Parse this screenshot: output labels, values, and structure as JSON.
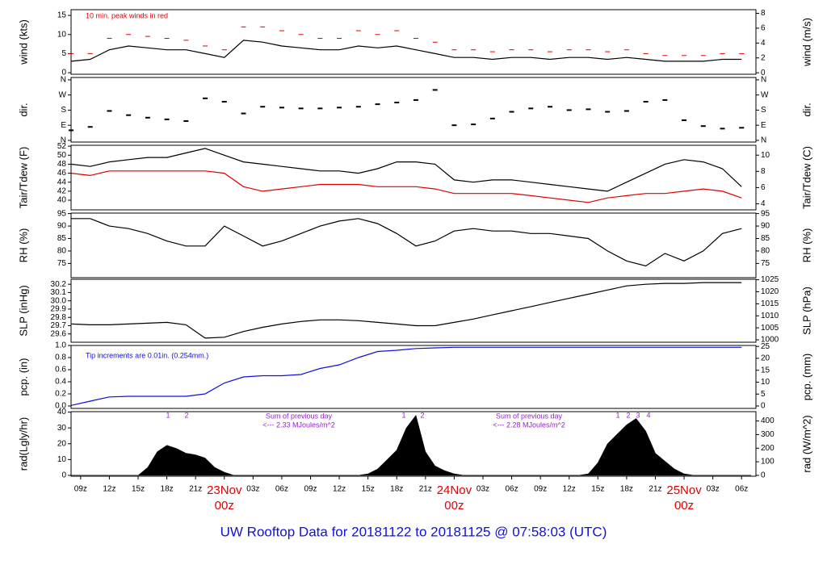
{
  "title": "UW Rooftop Data for 20181122  to  20181125 @ 07:58:03  (UTC)",
  "chart_data": [
    {
      "type": "line",
      "ylabel": "wind (kts)",
      "y2label": "wind (m/s)",
      "xlim": [
        -16,
        55.5
      ],
      "ylim": [
        -0.4,
        16.5
      ],
      "yticks": [
        0,
        5,
        10,
        15
      ],
      "y2lim": [
        -0.2,
        8.49
      ],
      "y2ticks": [
        0,
        2,
        4,
        6,
        8
      ],
      "x": [
        -16,
        -14,
        -12,
        -10,
        -8,
        -6,
        -4,
        -2,
        0,
        2,
        4,
        6,
        8,
        10,
        12,
        14,
        16,
        18,
        20,
        22,
        24,
        26,
        28,
        30,
        32,
        34,
        36,
        38,
        40,
        42,
        44,
        46,
        48,
        50,
        52,
        54
      ],
      "series": [
        {
          "name": "wind",
          "style": "line",
          "color": "#000000",
          "values": [
            3,
            3.5,
            6,
            7,
            6.5,
            6,
            6,
            5,
            4,
            8.5,
            8,
            7,
            6.5,
            6,
            6,
            7,
            6.5,
            7,
            6,
            5,
            4,
            4,
            3.5,
            4,
            4,
            3.5,
            4,
            4,
            3.5,
            4,
            3.5,
            3,
            3,
            3,
            3.5,
            3.5
          ]
        },
        {
          "name": "peak",
          "style": "dash",
          "color": "#e00000",
          "values": [
            5,
            5,
            9,
            10,
            9.5,
            9,
            8.5,
            7,
            6,
            12,
            12,
            11,
            10,
            9,
            9,
            11,
            10,
            11,
            9,
            8,
            6,
            6,
            5.5,
            6,
            6,
            5.5,
            6,
            6,
            5.5,
            6,
            5,
            4.5,
            4.5,
            4.5,
            5,
            5
          ]
        }
      ],
      "annotations": [
        "10 min. peak winds in red"
      ],
      "annotation_color": "#e00000"
    },
    {
      "type": "scatter",
      "ylabel": "dir.",
      "y2label": "dir.",
      "xlim": [
        -16,
        55.5
      ],
      "ylim": [
        -10,
        374
      ],
      "yticks": [
        {
          "value": 0,
          "label": "N"
        },
        {
          "value": 90,
          "label": "E"
        },
        {
          "value": 180,
          "label": "S"
        },
        {
          "value": 270,
          "label": "W"
        },
        {
          "value": 360,
          "label": "N"
        }
      ],
      "y2lim": [
        -10,
        374
      ],
      "y2ticks": [
        {
          "value": 0,
          "label": "N"
        },
        {
          "value": 90,
          "label": "E"
        },
        {
          "value": 180,
          "label": "S"
        },
        {
          "value": 270,
          "label": "W"
        },
        {
          "value": 360,
          "label": "N"
        }
      ],
      "x": [
        -16,
        -14,
        -12,
        -10,
        -8,
        -6,
        -4,
        -2,
        0,
        2,
        4,
        6,
        8,
        10,
        12,
        14,
        16,
        18,
        20,
        22,
        24,
        26,
        28,
        30,
        32,
        34,
        36,
        38,
        40,
        42,
        44,
        46,
        48,
        50,
        52,
        54
      ],
      "series": [
        {
          "name": "dir",
          "color": "#000000",
          "values": [
            60,
            80,
            175,
            150,
            135,
            125,
            115,
            250,
            230,
            160,
            200,
            195,
            190,
            190,
            195,
            200,
            215,
            225,
            240,
            300,
            90,
            95,
            130,
            170,
            190,
            200,
            180,
            185,
            170,
            175,
            230,
            240,
            120,
            85,
            70,
            75
          ]
        }
      ]
    },
    {
      "type": "line",
      "ylabel": "Tair/Tdew (F)",
      "y2label": "Tair/Tdew (C)",
      "xlim": [
        -16,
        55.5
      ],
      "ylim": [
        37.85,
        52.2
      ],
      "yticks": [
        40,
        42,
        44,
        46,
        48,
        50,
        52
      ],
      "y2lim": [
        3.25,
        11.22
      ],
      "y2ticks": [
        4,
        6,
        8,
        10
      ],
      "x": [
        -16,
        -14,
        -12,
        -10,
        -8,
        -6,
        -4,
        -2,
        0,
        2,
        4,
        6,
        8,
        10,
        12,
        14,
        16,
        18,
        20,
        22,
        24,
        26,
        28,
        30,
        32,
        34,
        36,
        38,
        40,
        42,
        44,
        46,
        48,
        50,
        52,
        54
      ],
      "series": [
        {
          "name": "Tair",
          "color": "#000000",
          "values": [
            48,
            47.5,
            48.5,
            49,
            49.5,
            49.5,
            50.5,
            51.5,
            50,
            48.5,
            48,
            47.5,
            47,
            46.5,
            46.5,
            46,
            47,
            48.5,
            48.5,
            48,
            44.5,
            44,
            44.5,
            44.5,
            44,
            43.5,
            43,
            42.5,
            42,
            44,
            46,
            48,
            49,
            48.5,
            47,
            43
          ]
        },
        {
          "name": "Tdew",
          "color": "#e00000",
          "values": [
            46,
            45.5,
            46.5,
            46.5,
            46.5,
            46.5,
            46.5,
            46.5,
            46,
            43,
            42,
            42.5,
            43,
            43.5,
            43.5,
            43.5,
            43,
            43,
            43,
            42.5,
            41.5,
            41.5,
            41.5,
            41.5,
            41,
            40.5,
            40,
            39.5,
            40.5,
            41,
            41.5,
            41.5,
            42,
            42.5,
            42,
            40.5
          ]
        }
      ]
    },
    {
      "type": "line",
      "ylabel": "RH (%)",
      "y2label": "RH (%)",
      "xlim": [
        -16,
        55.5
      ],
      "ylim": [
        69.3,
        95.2
      ],
      "yticks": [
        75,
        80,
        85,
        90,
        95
      ],
      "y2lim": [
        69.3,
        95.2
      ],
      "y2ticks": [
        75,
        80,
        85,
        90,
        95
      ],
      "x": [
        -16,
        -14,
        -12,
        -10,
        -8,
        -6,
        -4,
        -2,
        0,
        2,
        4,
        6,
        8,
        10,
        12,
        14,
        16,
        18,
        20,
        22,
        24,
        26,
        28,
        30,
        32,
        34,
        36,
        38,
        40,
        42,
        44,
        46,
        48,
        50,
        52,
        54
      ],
      "series": [
        {
          "name": "RH",
          "color": "#000000",
          "values": [
            93,
            93,
            90,
            89,
            87,
            84,
            82,
            82,
            90,
            86,
            82,
            84,
            87,
            90,
            92,
            93,
            91,
            87,
            82,
            84,
            88,
            89,
            88,
            88,
            87,
            87,
            86,
            85,
            80,
            76,
            74,
            79,
            76,
            80,
            87,
            89
          ]
        }
      ]
    },
    {
      "type": "line",
      "ylabel": "SLP (inHg)",
      "y2label": "SLP (hPa)",
      "xlim": [
        -16,
        55.5
      ],
      "ylim": [
        29.5,
        30.26
      ],
      "yticks": [
        29.6,
        29.7,
        29.8,
        29.9,
        {
          "value": 30,
          "label": "30.0"
        },
        30.1,
        30.2
      ],
      "y2lim": [
        999,
        1025.2
      ],
      "y2ticks": [
        1000,
        1005,
        1010,
        1015,
        1020,
        1025
      ],
      "x": [
        -16,
        -14,
        -12,
        -10,
        -8,
        -6,
        -4,
        -2,
        0,
        2,
        4,
        6,
        8,
        10,
        12,
        14,
        16,
        18,
        20,
        22,
        24,
        26,
        28,
        30,
        32,
        34,
        36,
        38,
        40,
        42,
        44,
        46,
        48,
        50,
        52,
        54
      ],
      "series": [
        {
          "name": "SLP",
          "color": "#000000",
          "values": [
            29.72,
            29.71,
            29.71,
            29.72,
            29.73,
            29.74,
            29.71,
            29.55,
            29.56,
            29.63,
            29.68,
            29.72,
            29.75,
            29.77,
            29.77,
            29.76,
            29.74,
            29.72,
            29.7,
            29.7,
            29.74,
            29.78,
            29.83,
            29.88,
            29.93,
            29.98,
            30.03,
            30.08,
            30.13,
            30.18,
            30.2,
            30.21,
            30.21,
            30.22,
            30.22,
            30.22
          ]
        }
      ]
    },
    {
      "type": "line",
      "ylabel": "pcp. (in)",
      "y2label": "pcp. (mm)",
      "xlim": [
        -16,
        55.5
      ],
      "ylim": [
        -0.04,
        1.0
      ],
      "yticks": [
        {
          "value": 0,
          "label": "0.0"
        },
        0.2,
        0.4,
        0.6,
        0.8,
        {
          "value": 1,
          "label": "1.0"
        }
      ],
      "y2lim": [
        -1.016,
        25.4
      ],
      "y2ticks": [
        0,
        5,
        10,
        15,
        20,
        25
      ],
      "x": [
        -16,
        -14,
        -12,
        -10,
        -8,
        -6,
        -4,
        -2,
        0,
        2,
        4,
        6,
        8,
        10,
        12,
        14,
        16,
        18,
        20,
        22,
        24,
        26,
        28,
        30,
        32,
        34,
        36,
        38,
        40,
        42,
        44,
        46,
        48,
        50,
        52,
        54
      ],
      "series": [
        {
          "name": "pcp",
          "color": "#1010e0",
          "values": [
            0.01,
            0.08,
            0.15,
            0.16,
            0.16,
            0.16,
            0.16,
            0.2,
            0.38,
            0.48,
            0.5,
            0.5,
            0.52,
            0.62,
            0.68,
            0.8,
            0.9,
            0.92,
            0.95,
            0.96,
            0.97,
            0.97,
            0.97,
            0.97,
            0.97,
            0.97,
            0.97,
            0.97,
            0.97,
            0.97,
            0.97,
            0.97,
            0.97,
            0.97,
            0.97,
            0.97
          ]
        }
      ],
      "annotations": [
        "Tip increments are 0.01in. (0.254mm.)"
      ],
      "annotation_color": "#1010e0"
    },
    {
      "type": "area",
      "ylabel": "rad(Lgly/hr)",
      "y2label": "rad (W/m^2)",
      "xlim": [
        -16,
        55.5
      ],
      "ylim": [
        -0.54,
        40.3
      ],
      "yticks": [
        0,
        10,
        20,
        30,
        40
      ],
      "y2lim": [
        -6.3,
        468.7
      ],
      "y2ticks": [
        0,
        100,
        200,
        300,
        400
      ],
      "x": [
        -16,
        -15,
        -14,
        -13,
        -12,
        -11,
        -10,
        -9,
        -8,
        -7,
        -6,
        -5,
        -4,
        -3,
        -2,
        -1,
        0,
        1,
        2,
        3,
        4,
        5,
        6,
        7,
        8,
        9,
        10,
        11,
        12,
        13,
        14,
        15,
        16,
        17,
        18,
        19,
        20,
        21,
        22,
        23,
        24,
        25,
        26,
        27,
        28,
        29,
        30,
        31,
        32,
        33,
        34,
        35,
        36,
        37,
        38,
        39,
        40,
        41,
        42,
        43,
        44,
        45,
        46,
        47,
        48,
        49,
        50,
        51,
        52,
        53,
        54,
        55
      ],
      "series": [
        {
          "name": "rad",
          "color": "#000000",
          "values": [
            0,
            0,
            0,
            0,
            0,
            0,
            0,
            0,
            5,
            15,
            19,
            17,
            14,
            13,
            11,
            5,
            2,
            0,
            0,
            0,
            0,
            0,
            0,
            0,
            0,
            0,
            0,
            0,
            0,
            0,
            0,
            1,
            4,
            10,
            16,
            30,
            38,
            15,
            6,
            3,
            1,
            0,
            0,
            0,
            0,
            0,
            0,
            0,
            0,
            0,
            0,
            0,
            0,
            0,
            1,
            8,
            20,
            26,
            32,
            36,
            28,
            14,
            9,
            4,
            1,
            0,
            0,
            0,
            0,
            0,
            0,
            0
          ]
        }
      ],
      "annotations": [
        "1",
        "2",
        "1",
        "2",
        "Sum of previous day",
        "<--- 2.33 MJoules/m^2",
        "Sum of previous day",
        "<--- 2.28 MJoules/m^2",
        "1",
        "2",
        "3",
        "4"
      ],
      "annotation_color": "#9a20d0",
      "xticks": [
        {
          "value": -15,
          "label": "09z"
        },
        {
          "value": -12,
          "label": "12z"
        },
        {
          "value": -9,
          "label": "15z"
        },
        {
          "value": -6,
          "label": "18z"
        },
        {
          "value": -3,
          "label": "21z"
        },
        {
          "value": 0,
          "label": "00z",
          "day": "23Nov"
        },
        {
          "value": 3,
          "label": "03z"
        },
        {
          "value": 6,
          "label": "06z"
        },
        {
          "value": 9,
          "label": "09z"
        },
        {
          "value": 12,
          "label": "12z"
        },
        {
          "value": 15,
          "label": "15z"
        },
        {
          "value": 18,
          "label": "18z"
        },
        {
          "value": 21,
          "label": "21z"
        },
        {
          "value": 24,
          "label": "00z",
          "day": "24Nov"
        },
        {
          "value": 27,
          "label": "03z"
        },
        {
          "value": 30,
          "label": "06z"
        },
        {
          "value": 33,
          "label": "09z"
        },
        {
          "value": 36,
          "label": "12z"
        },
        {
          "value": 39,
          "label": "15z"
        },
        {
          "value": 42,
          "label": "18z"
        },
        {
          "value": 45,
          "label": "21z"
        },
        {
          "value": 48,
          "label": "00z",
          "day": "25Nov"
        },
        {
          "value": 51,
          "label": "03z"
        },
        {
          "value": 54,
          "label": "06z"
        }
      ]
    }
  ]
}
